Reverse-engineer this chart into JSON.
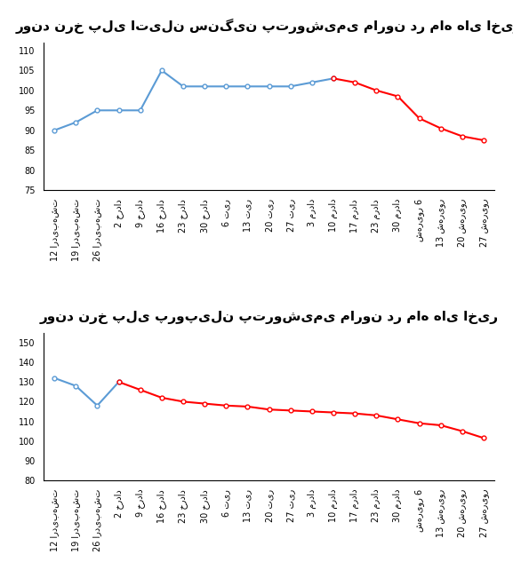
{
  "chart1": {
    "title": "روند نرخ پلی اتیلن سنگین پتروشیمی مارون در ماه های اخیر",
    "ylim": [
      75,
      112
    ],
    "yticks": [
      75,
      80,
      85,
      90,
      95,
      100,
      105,
      110
    ],
    "blue_x": [
      0,
      1,
      2,
      3,
      4,
      5,
      6,
      7,
      8,
      9,
      10,
      11,
      12,
      13
    ],
    "blue_values": [
      90,
      92,
      95,
      95,
      95,
      105,
      101,
      101,
      101,
      101,
      101,
      101,
      102,
      103
    ],
    "red_x": [
      13,
      14,
      15,
      16,
      17,
      18,
      19,
      20
    ],
    "red_values": [
      103,
      102,
      100,
      98.5,
      93,
      90.5,
      88.5,
      87.5
    ]
  },
  "chart2": {
    "title": "روند نرخ پلی پروپیلن پتروشیمی مارون در ماه های اخیر",
    "ylim": [
      80,
      155
    ],
    "yticks": [
      80,
      90,
      100,
      110,
      120,
      130,
      140,
      150
    ],
    "blue_x": [
      0,
      1,
      2,
      3
    ],
    "blue_values": [
      132,
      128,
      118,
      130
    ],
    "red_x": [
      3,
      4,
      5,
      6,
      7,
      8,
      9,
      10,
      11,
      12,
      13,
      14,
      15,
      16,
      17,
      18,
      19,
      20
    ],
    "red_values": [
      130,
      126,
      122,
      120,
      119,
      118,
      117.5,
      116,
      115.5,
      115,
      114.5,
      114,
      113,
      111,
      109,
      108,
      105,
      101.5
    ]
  },
  "x_labels": [
    "12 اردیبهشت",
    "19 اردیبهشت",
    "26 اردیبهشت",
    "2 خرداد",
    "9 خرداد",
    "16 خرداد",
    "23 خرداد",
    "30 خرداد",
    "6 تیر",
    "13 تیر",
    "20 تیر",
    "27 تیر",
    "3 مرداد",
    "10 مرداد",
    "17 مرداد",
    "23 مرداد",
    "30 مرداد",
    "شهریور 6",
    "13 شهریور",
    "20 شهریور",
    "27 شهریور"
  ],
  "blue_color": "#5B9BD5",
  "red_color": "#FF0000",
  "background_color": "#FFFFFF",
  "title_fontsize": 11,
  "tick_fontsize": 7,
  "marker": "o",
  "markersize": 3.5,
  "linewidth": 1.5
}
